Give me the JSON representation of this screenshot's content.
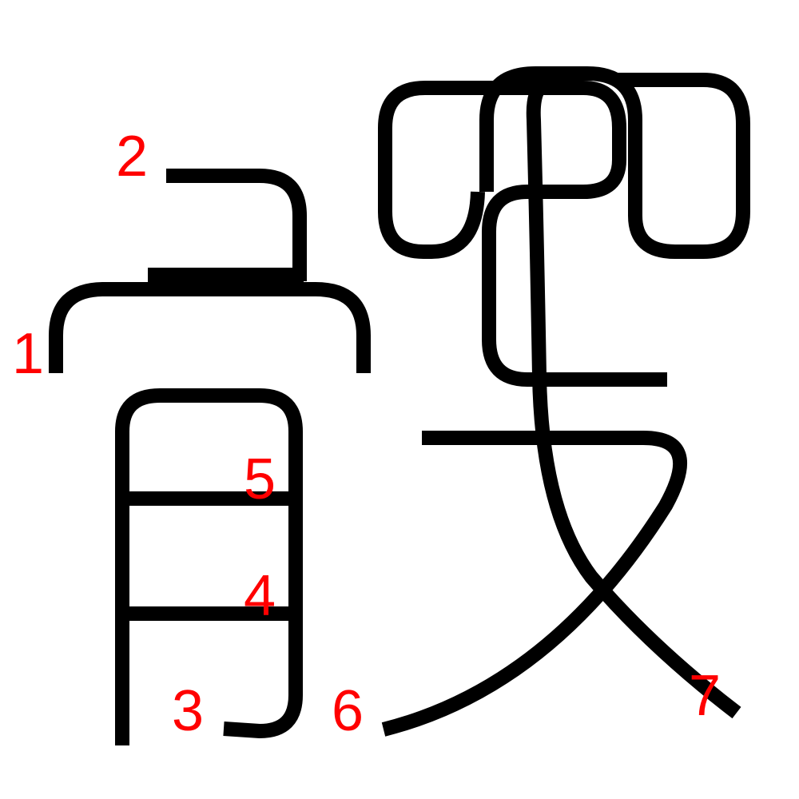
{
  "diagram": {
    "background_color": "#ffffff",
    "stroke_color": "#000000",
    "label_color": "#ff0000",
    "stroke_order_labels": [
      "1",
      "2",
      "3",
      "4",
      "5",
      "6",
      "7"
    ]
  }
}
